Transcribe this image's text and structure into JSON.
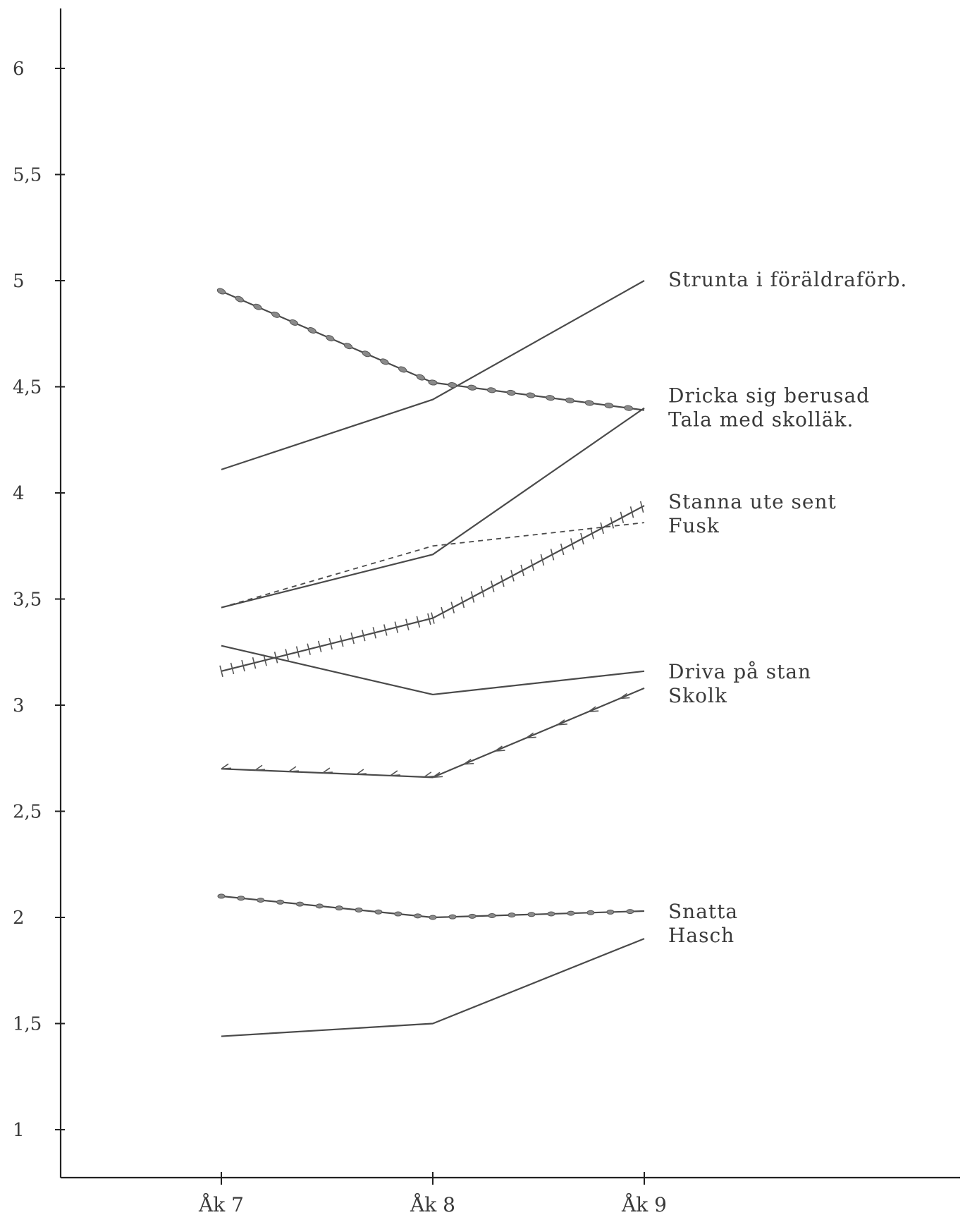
{
  "chart_data": {
    "type": "line",
    "categories": [
      "Åk 7",
      "Åk 8",
      "Åk 9"
    ],
    "ylim": [
      0.75,
      6.25
    ],
    "y_ticks": [
      "1",
      "1,5",
      "2",
      "2,5",
      "3",
      "3,5",
      "4",
      "4,5",
      "5",
      "5,5",
      "6"
    ],
    "y_tick_values": [
      1,
      1.5,
      2,
      2.5,
      3,
      3.5,
      4,
      4.5,
      5,
      5.5,
      6
    ],
    "grid": false,
    "series": [
      {
        "name": "Strunta i föräldraförb.",
        "values": [
          4.11,
          4.44,
          5.0
        ],
        "style": "solid",
        "marker": "none"
      },
      {
        "name": "Dricka sig berusad",
        "values": [
          3.46,
          3.71,
          4.4
        ],
        "style": "solid",
        "marker": "none"
      },
      {
        "name": "Tala med skolläk.",
        "values": [
          4.95,
          4.52,
          4.39
        ],
        "style": "solid",
        "marker": "circle"
      },
      {
        "name": "Stanna ute sent",
        "values": [
          3.16,
          3.41,
          3.94
        ],
        "style": "solid",
        "marker": "cross"
      },
      {
        "name": "Fusk",
        "values": [
          3.46,
          3.75,
          3.86
        ],
        "style": "dashed",
        "marker": "none"
      },
      {
        "name": "Driva på stan",
        "values": [
          3.28,
          3.05,
          3.16
        ],
        "style": "solid",
        "marker": "none"
      },
      {
        "name": "Skolk",
        "values": [
          2.7,
          2.66,
          3.08
        ],
        "style": "solid",
        "marker": "arrow"
      },
      {
        "name": "Snatta",
        "values": [
          2.1,
          2.0,
          2.03
        ],
        "style": "solid",
        "marker": "dot"
      },
      {
        "name": "Hasch",
        "values": [
          1.44,
          1.5,
          1.9
        ],
        "style": "solid",
        "marker": "none"
      }
    ],
    "label_groups": [
      {
        "names": [
          "Strunta i föräldraförb."
        ],
        "value": 5.0
      },
      {
        "names": [
          "Dricka sig berusad",
          "Tala med skolläk."
        ],
        "value": 4.4
      },
      {
        "names": [
          "Stanna ute sent",
          "Fusk"
        ],
        "value": 3.9
      },
      {
        "names": [
          "Driva på stan",
          "Skolk"
        ],
        "value": 3.1
      },
      {
        "names": [
          "Snatta",
          "Hasch"
        ],
        "value": 1.97
      }
    ]
  }
}
